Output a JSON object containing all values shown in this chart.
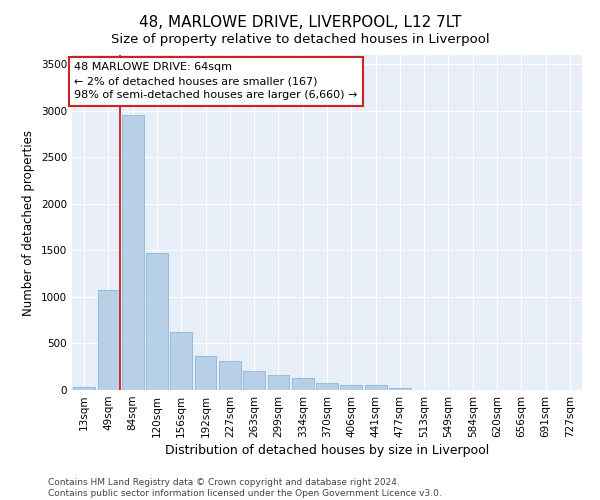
{
  "title": "48, MARLOWE DRIVE, LIVERPOOL, L12 7LT",
  "subtitle": "Size of property relative to detached houses in Liverpool",
  "xlabel": "Distribution of detached houses by size in Liverpool",
  "ylabel": "Number of detached properties",
  "categories": [
    "13sqm",
    "49sqm",
    "84sqm",
    "120sqm",
    "156sqm",
    "192sqm",
    "227sqm",
    "263sqm",
    "299sqm",
    "334sqm",
    "370sqm",
    "406sqm",
    "441sqm",
    "477sqm",
    "513sqm",
    "549sqm",
    "584sqm",
    "620sqm",
    "656sqm",
    "691sqm",
    "727sqm"
  ],
  "values": [
    30,
    1080,
    2950,
    1470,
    620,
    370,
    310,
    200,
    160,
    130,
    80,
    55,
    50,
    20,
    5,
    3,
    2,
    1,
    1,
    0,
    0
  ],
  "bar_color": "#b8cfe8",
  "bar_edge_color": "#7aaed6",
  "annotation_line_color": "#cc2222",
  "annotation_box_text": "48 MARLOWE DRIVE: 64sqm\n← 2% of detached houses are smaller (167)\n98% of semi-detached houses are larger (6,660) →",
  "annotation_box_edge_color": "#cc2222",
  "ylim": [
    0,
    3600
  ],
  "yticks": [
    0,
    500,
    1000,
    1500,
    2000,
    2500,
    3000,
    3500
  ],
  "bg_color": "#e8eef8",
  "grid_color": "#ffffff",
  "footer_text": "Contains HM Land Registry data © Crown copyright and database right 2024.\nContains public sector information licensed under the Open Government Licence v3.0.",
  "title_fontsize": 11,
  "subtitle_fontsize": 9.5,
  "xlabel_fontsize": 9,
  "ylabel_fontsize": 8.5,
  "tick_fontsize": 7.5,
  "footer_fontsize": 6.5,
  "annotation_fontsize": 8
}
